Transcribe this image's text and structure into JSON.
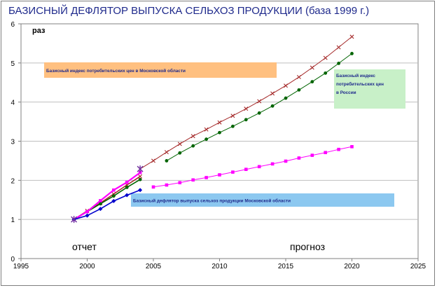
{
  "chart_data": {
    "type": "line",
    "title": "БАЗИСНЫЙ ДЕФЛЯТОР ВЫПУСКА СЕЛЬХОЗ ПРОДУКЦИИ  (база 1999 г.)",
    "ylabel": "раз",
    "xlim": [
      1995,
      2025
    ],
    "ylim": [
      0,
      6
    ],
    "xticks": [
      "1995",
      "2000",
      "2005",
      "2010",
      "2015",
      "2020",
      "2025"
    ],
    "yticks": [
      "0",
      "1",
      "2",
      "3",
      "4",
      "5",
      "6"
    ],
    "grid": "horizontal",
    "period_labels": {
      "report": "отчет",
      "forecast": "прогноз"
    },
    "series": [
      {
        "key": "cpi_mo",
        "name": "Базисный индекс потребительских цен в Московской области",
        "color": "#a52a2a",
        "marker": "x",
        "report": {
          "x": [
            1999,
            2000,
            2001,
            2002,
            2003,
            2004
          ],
          "values": [
            1.0,
            1.22,
            1.42,
            1.65,
            1.88,
            2.1
          ]
        },
        "forecast": {
          "x": [
            2004,
            2005,
            2006,
            2007,
            2008,
            2009,
            2010,
            2011,
            2012,
            2013,
            2014,
            2015,
            2016,
            2017,
            2018,
            2019,
            2020
          ],
          "values": [
            2.29,
            2.5,
            2.72,
            2.93,
            3.13,
            3.3,
            3.48,
            3.65,
            3.83,
            4.02,
            4.22,
            4.42,
            4.64,
            4.88,
            5.13,
            5.4,
            5.67
          ]
        }
      },
      {
        "key": "cpi_ru",
        "name": "Базисный индекс потребительских цен в России",
        "color": "#006400",
        "marker": "dot",
        "report": {
          "x": [
            1999,
            2000,
            2001,
            2002,
            2003,
            2004
          ],
          "values": [
            1.0,
            1.2,
            1.4,
            1.6,
            1.82,
            2.02
          ]
        },
        "forecast": {
          "x": [
            2006,
            2007,
            2008,
            2009,
            2010,
            2011,
            2012,
            2013,
            2014,
            2015,
            2016,
            2017,
            2018,
            2019,
            2020
          ],
          "values": [
            2.5,
            2.7,
            2.88,
            3.05,
            3.22,
            3.38,
            3.55,
            3.72,
            3.9,
            4.1,
            4.31,
            4.52,
            4.74,
            4.99,
            5.24
          ]
        }
      },
      {
        "key": "defl_mo",
        "name": "Базисный дефлятор выпуска сельхоз продукции Московской области",
        "color": "#ff00ff",
        "marker": "square",
        "report": {
          "x": [
            1999,
            2000,
            2001,
            2002,
            2003,
            2004
          ],
          "values": [
            1.0,
            1.2,
            1.48,
            1.75,
            1.95,
            2.2
          ]
        },
        "forecast": {
          "x": [
            2005,
            2006,
            2007,
            2008,
            2009,
            2010,
            2011,
            2012,
            2013,
            2014,
            2015,
            2016,
            2017,
            2018,
            2019,
            2020
          ],
          "values": [
            1.83,
            1.88,
            1.94,
            2.01,
            2.07,
            2.14,
            2.21,
            2.28,
            2.35,
            2.42,
            2.49,
            2.57,
            2.64,
            2.71,
            2.79,
            2.86
          ]
        }
      },
      {
        "key": "defl_ru",
        "name": "",
        "color": "#0000cd",
        "marker": "diamond",
        "report": {
          "x": [
            1999,
            2000,
            2001,
            2002,
            2003,
            2004
          ],
          "values": [
            1.0,
            1.1,
            1.27,
            1.47,
            1.62,
            1.75
          ]
        },
        "forecast": {
          "x": [],
          "values": []
        }
      }
    ],
    "notes": [
      {
        "series": "cpi_mo",
        "text": "Базисный индекс потребительских цен в Московской области",
        "bg": "#ffc080"
      },
      {
        "series": "cpi_ru",
        "text": "Базисный индекс потребительских цен в России",
        "bg": "#c8f0c8"
      },
      {
        "series": "defl_mo",
        "text": "Базисный дефлятор выпуска сельхоз продукции Московской области",
        "bg": "#8cc8f0"
      }
    ]
  }
}
